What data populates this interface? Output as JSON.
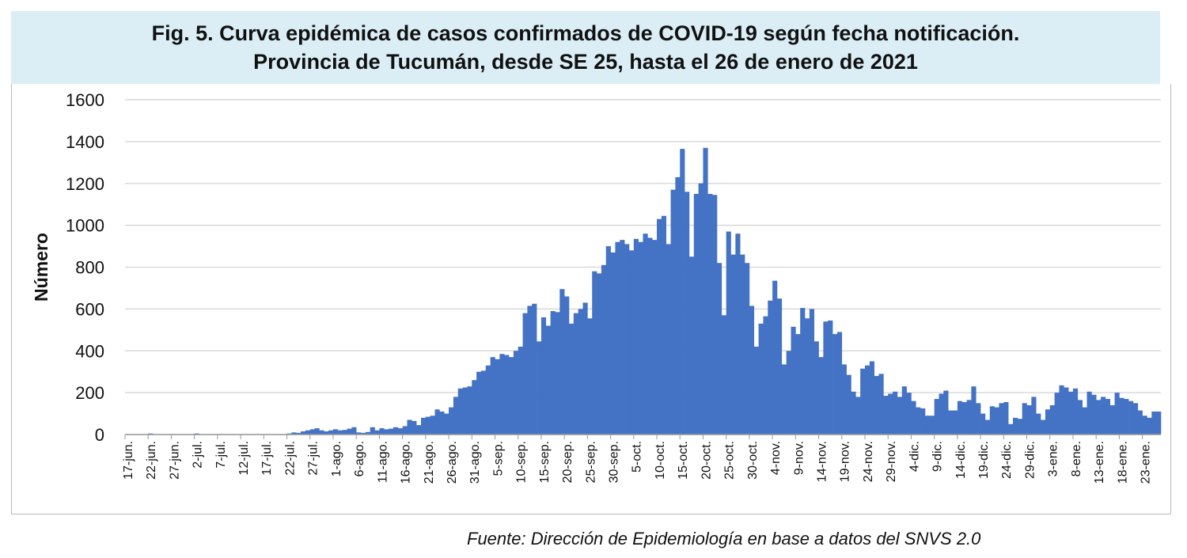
{
  "title_line1": "Fig. 5. Curva epidémica de casos confirmados de COVID-19 según fecha notificación.",
  "title_line2": "Provincia de Tucumán, desde SE 25, hasta el 26 de enero de 2021",
  "source": "Fuente: Dirección de Epidemiología en base a datos del SNVS 2.0",
  "chart_data": {
    "type": "bar",
    "ylabel": "Número",
    "xlabel": "",
    "ylim": [
      0,
      1600
    ],
    "yticks": [
      0,
      200,
      400,
      600,
      800,
      1000,
      1200,
      1400,
      1600
    ],
    "grid": true,
    "bar_color": "#4472C4",
    "x_start": "17-jun",
    "x_end": "26-ene",
    "x_tick_labels": [
      "17-jun.",
      "22-jun.",
      "27-jun.",
      "2-jul.",
      "7-jul.",
      "12-jul.",
      "17-jul.",
      "22-jul.",
      "27-jul.",
      "1-ago.",
      "6-ago.",
      "11-ago.",
      "16-ago.",
      "21-ago.",
      "26-ago.",
      "31-ago.",
      "5-sep.",
      "10-sep.",
      "15-sep.",
      "20-sep.",
      "25-sep.",
      "30-sep.",
      "5-oct.",
      "10-oct.",
      "15-oct.",
      "20-oct.",
      "25-oct.",
      "30-oct.",
      "4-nov.",
      "9-nov.",
      "14-nov.",
      "19-nov.",
      "24-nov.",
      "29-nov.",
      "4-dic.",
      "9-dic.",
      "14-dic.",
      "19-dic.",
      "24-dic.",
      "29-dic.",
      "3-ene.",
      "8-ene.",
      "13-ene.",
      "18-ene.",
      "23-ene."
    ],
    "values": [
      0,
      0,
      0,
      0,
      0,
      5,
      0,
      0,
      0,
      0,
      0,
      0,
      0,
      0,
      0,
      5,
      0,
      0,
      0,
      0,
      0,
      0,
      0,
      0,
      0,
      0,
      0,
      0,
      0,
      0,
      0,
      0,
      0,
      0,
      0,
      5,
      10,
      8,
      15,
      20,
      25,
      30,
      20,
      15,
      20,
      25,
      20,
      22,
      28,
      35,
      10,
      8,
      12,
      35,
      20,
      30,
      25,
      28,
      35,
      30,
      40,
      70,
      65,
      45,
      80,
      85,
      90,
      120,
      110,
      100,
      130,
      180,
      220,
      225,
      230,
      260,
      300,
      305,
      330,
      370,
      360,
      385,
      380,
      370,
      400,
      420,
      580,
      615,
      625,
      445,
      560,
      520,
      590,
      585,
      695,
      660,
      530,
      580,
      600,
      630,
      555,
      780,
      770,
      810,
      900,
      870,
      920,
      930,
      910,
      880,
      935,
      920,
      960,
      940,
      930,
      1030,
      1045,
      910,
      1170,
      1230,
      1365,
      1160,
      850,
      1150,
      1200,
      1370,
      1150,
      1145,
      820,
      570,
      970,
      860,
      960,
      860,
      820,
      615,
      420,
      530,
      565,
      640,
      735,
      650,
      335,
      400,
      515,
      480,
      605,
      555,
      600,
      445,
      370,
      540,
      545,
      480,
      490,
      335,
      285,
      205,
      180,
      315,
      330,
      350,
      280,
      290,
      185,
      195,
      205,
      180,
      230,
      200,
      160,
      130,
      125,
      90,
      90,
      170,
      195,
      210,
      115,
      115,
      160,
      155,
      165,
      230,
      150,
      100,
      70,
      135,
      130,
      150,
      155,
      50,
      80,
      75,
      150,
      140,
      180,
      100,
      70,
      120,
      140,
      200,
      235,
      225,
      205,
      220,
      165,
      130,
      205,
      190,
      165,
      180,
      170,
      140,
      200,
      175,
      170,
      160,
      150,
      115,
      90,
      80,
      110,
      110
    ]
  }
}
